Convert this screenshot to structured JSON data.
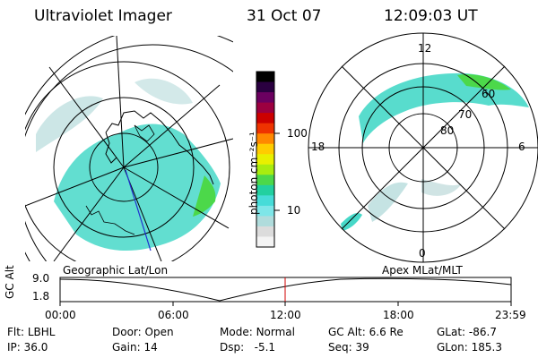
{
  "header": {
    "instrument": "Ultraviolet Imager",
    "date": "31 Oct 07",
    "time": "12:09:03 UT"
  },
  "left_map": {
    "caption": "Geographic Lat/Lon"
  },
  "right_map": {
    "caption": "Apex MLat/MLT",
    "mlt_labels": [
      "12",
      "18",
      "6",
      "0"
    ],
    "lat_labels": [
      "60",
      "70",
      "80"
    ]
  },
  "colorbar": {
    "unit_label": "photon cm⁻²s⁻¹",
    "ticks": [
      "100",
      "10"
    ],
    "colors": [
      "#000000",
      "#2a0040",
      "#6b0060",
      "#9c0040",
      "#cc0000",
      "#ee3300",
      "#ff8800",
      "#ffcc00",
      "#e8f000",
      "#a8ec10",
      "#4cd84a",
      "#22d0a0",
      "#46dcd8",
      "#7ee6e8",
      "#b0dcdc",
      "#dcdcdc",
      "#f4f4f4"
    ]
  },
  "altitude_plot": {
    "y_label": "GC Alt",
    "y_ticks": [
      "9.0",
      "1.8"
    ],
    "x_ticks": [
      "00:00",
      "06:00",
      "12:00",
      "18:00",
      "23:59"
    ],
    "marker_time": "12:09"
  },
  "status": {
    "row1": [
      {
        "label": "Flt:",
        "value": "LBHL"
      },
      {
        "label": "Door:",
        "value": "Open"
      },
      {
        "label": "Mode:",
        "value": "Normal"
      },
      {
        "label": "GC Alt:",
        "value": "6.6 Re"
      },
      {
        "label": "GLat:",
        "value": "-86.7"
      }
    ],
    "row2": [
      {
        "label": "IP:",
        "value": "36.0"
      },
      {
        "label": "Gain:",
        "value": "14"
      },
      {
        "label": "Dsp:",
        "value": "-5.1"
      },
      {
        "label": "Seq:",
        "value": "39"
      },
      {
        "label": "GLon:",
        "value": "185.3"
      }
    ]
  }
}
